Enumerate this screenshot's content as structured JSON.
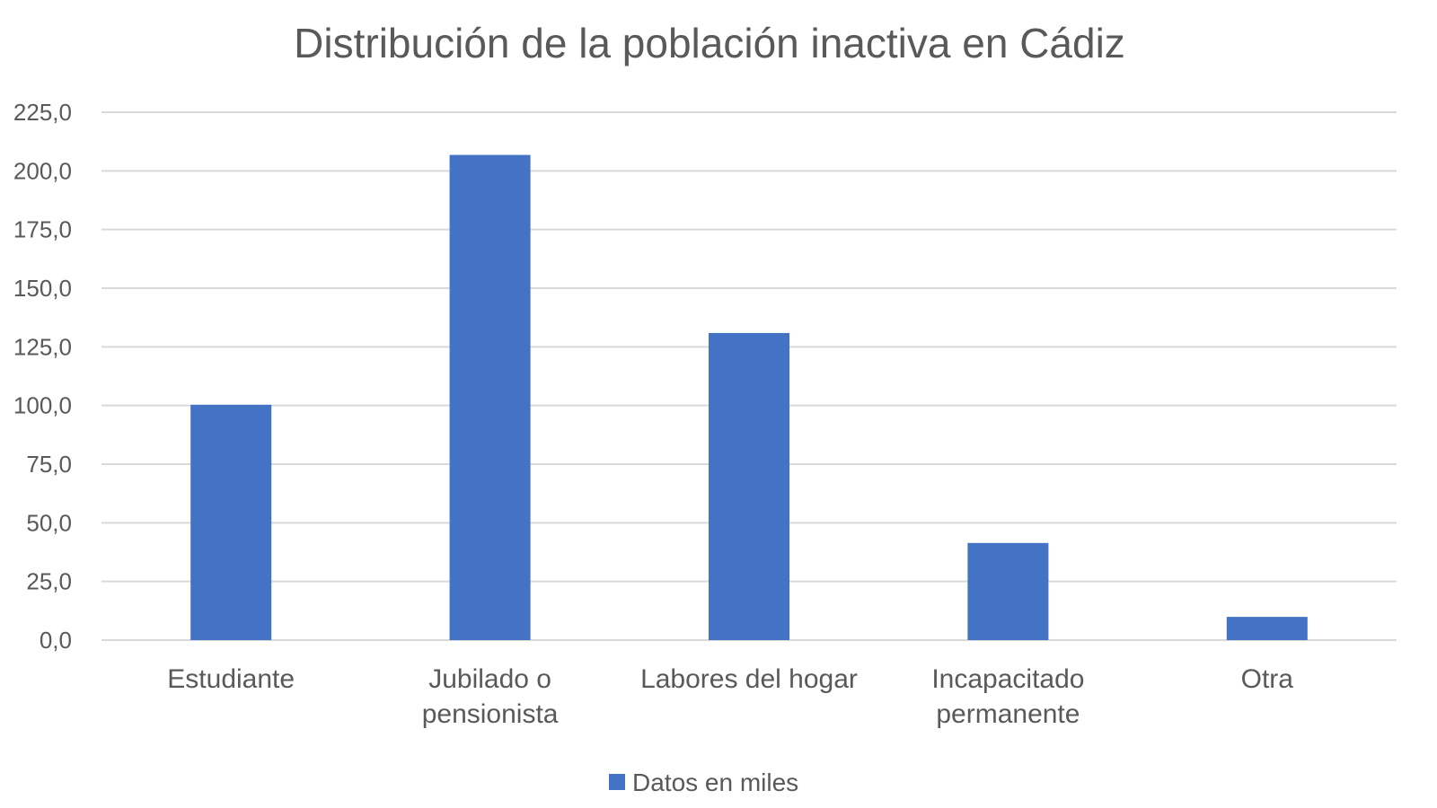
{
  "chart_data": {
    "type": "bar",
    "title": "Distribución de la población inactiva en Cádiz",
    "xlabel": "",
    "ylabel": "",
    "categories": [
      [
        "Estudiante"
      ],
      [
        "Jubilado o",
        "pensionista"
      ],
      [
        "Labores del hogar"
      ],
      [
        "Incapacitado",
        "permanente"
      ],
      [
        "Otra"
      ]
    ],
    "series": [
      {
        "name": "Datos en miles",
        "values": [
          100.3,
          206.8,
          130.9,
          41.4,
          9.9
        ],
        "color": "#4472c4"
      }
    ],
    "ylim": [
      0,
      225
    ],
    "yticks": [
      "0,0",
      "25,0",
      "50,0",
      "75,0",
      "100,0",
      "125,0",
      "150,0",
      "175,0",
      "200,0",
      "225,0"
    ],
    "ytick_values": [
      0,
      25,
      50,
      75,
      100,
      125,
      150,
      175,
      200,
      225
    ],
    "grid": true,
    "legend_position": "bottom"
  }
}
